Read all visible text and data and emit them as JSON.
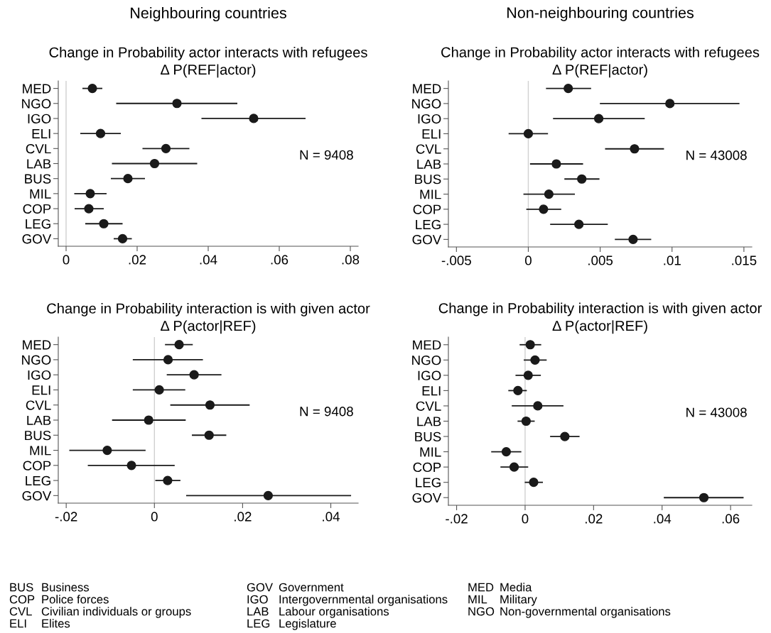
{
  "chart_data": [
    {
      "type": "scatter",
      "orientation": "horizontal",
      "title": "Change in Probability actor interacts with refugees",
      "subtitle": "Δ P(REF|actor)",
      "annotations": [
        "Neighbouring countries",
        "N = 9408"
      ],
      "color": "#1a1a1a",
      "marker": "circle",
      "grid": false,
      "legend": false,
      "categories": [
        "MED",
        "NGO",
        "IGO",
        "ELI",
        "CVL",
        "LAB",
        "BUS",
        "MIL",
        "COP",
        "LEG",
        "GOV"
      ],
      "values": [
        0.0074,
        0.0312,
        0.0528,
        0.0097,
        0.0281,
        0.0249,
        0.0174,
        0.0068,
        0.0064,
        0.0106,
        0.0159
      ],
      "errors": [
        [
          0.0046,
          0.0102
        ],
        [
          0.0141,
          0.0482
        ],
        [
          0.0381,
          0.0674
        ],
        [
          0.004,
          0.0154
        ],
        [
          0.0215,
          0.0347
        ],
        [
          0.0129,
          0.0369
        ],
        [
          0.0126,
          0.0222
        ],
        [
          0.0023,
          0.0114
        ],
        [
          0.0024,
          0.0106
        ],
        [
          0.0054,
          0.0159
        ],
        [
          0.0134,
          0.0185
        ]
      ],
      "xlim": [
        -0.0022,
        0.0822
      ],
      "xticks": [
        0,
        {
          "value": 0.02,
          "label": ".02"
        },
        {
          "value": 0.04,
          "label": ".04"
        },
        {
          "value": 0.06,
          "label": ".06"
        },
        {
          "value": 0.08,
          "label": ".08"
        }
      ],
      "ref_lines": [
        {
          "axis": "x",
          "value": 0,
          "color": "#d0d0d0"
        }
      ]
    },
    {
      "type": "scatter",
      "orientation": "horizontal",
      "title": "Change in Probability actor interacts with refugees",
      "subtitle": "Δ P(REF|actor)",
      "annotations": [
        "Non-neighbouring countries",
        "N = 43008"
      ],
      "color": "#1a1a1a",
      "marker": "circle",
      "grid": false,
      "legend": false,
      "categories": [
        "MED",
        "NGO",
        "IGO",
        "ELI",
        "CVL",
        "LAB",
        "BUS",
        "MIL",
        "COP",
        "LEG",
        "GOV"
      ],
      "values": [
        0.00278,
        0.00985,
        0.0049,
        0.0,
        0.00739,
        0.00195,
        0.00372,
        0.00143,
        0.00106,
        0.00352,
        0.00729
      ],
      "errors": [
        [
          0.00123,
          0.00437
        ],
        [
          0.00498,
          0.01469
        ],
        [
          0.00172,
          0.0081
        ],
        [
          -0.00137,
          0.00137
        ],
        [
          0.00534,
          0.00944
        ],
        [
          0.00012,
          0.00381
        ],
        [
          0.00251,
          0.00495
        ],
        [
          -0.00034,
          0.00324
        ],
        [
          -0.00014,
          0.00229
        ],
        [
          0.00152,
          0.00553
        ],
        [
          0.00602,
          0.00855
        ]
      ],
      "xlim": [
        -0.00556,
        0.01555
      ],
      "xticks": [
        {
          "value": -0.005,
          "label": "-.005"
        },
        0,
        {
          "value": 0.005,
          "label": ".005"
        },
        {
          "value": 0.01,
          "label": ".01"
        },
        {
          "value": 0.015,
          "label": ".015"
        }
      ],
      "ref_lines": [
        {
          "axis": "x",
          "value": 0,
          "color": "#d0d0d0"
        }
      ]
    },
    {
      "type": "scatter",
      "orientation": "horizontal",
      "title": "Change in Probability interaction is with given actor",
      "subtitle": "Δ P(actor|REF)",
      "annotations": [
        "N = 9408"
      ],
      "color": "#1a1a1a",
      "marker": "circle",
      "grid": false,
      "legend": false,
      "categories": [
        "MED",
        "NGO",
        "IGO",
        "ELI",
        "CVL",
        "LAB",
        "BUS",
        "MIL",
        "COP",
        "LEG",
        "GOV"
      ],
      "values": [
        0.0056,
        0.0031,
        0.009,
        0.0011,
        0.0126,
        -0.0013,
        0.0124,
        -0.0107,
        -0.0052,
        0.003,
        0.0258
      ],
      "errors": [
        [
          0.0024,
          0.0087
        ],
        [
          -0.0049,
          0.011
        ],
        [
          0.0028,
          0.0152
        ],
        [
          -0.0049,
          0.007
        ],
        [
          0.0036,
          0.0216
        ],
        [
          -0.0096,
          0.0071
        ],
        [
          0.0085,
          0.0163
        ],
        [
          -0.0193,
          -0.002
        ],
        [
          -0.0151,
          0.0046
        ],
        [
          0.0002,
          0.0059
        ],
        [
          0.0072,
          0.0446
        ]
      ],
      "xlim": [
        -0.0218,
        0.0462
      ],
      "xticks": [
        {
          "value": -0.02,
          "label": "-.02"
        },
        0,
        {
          "value": 0.02,
          "label": ".02"
        },
        {
          "value": 0.04,
          "label": ".04"
        }
      ],
      "ref_lines": [
        {
          "axis": "x",
          "value": 0,
          "color": "#d0d0d0"
        }
      ]
    },
    {
      "type": "scatter",
      "orientation": "horizontal",
      "title": "Change in Probability interaction is with given actor",
      "subtitle": "Δ P(actor|REF)",
      "annotations": [
        "N = 43008"
      ],
      "color": "#1a1a1a",
      "marker": "circle",
      "grid": false,
      "legend": false,
      "categories": [
        "MED",
        "NGO",
        "IGO",
        "ELI",
        "CVL",
        "LAB",
        "BUS",
        "MIL",
        "COP",
        "LEG",
        "GOV"
      ],
      "values": [
        0.0015,
        0.0029,
        0.0009,
        -0.0021,
        0.0037,
        0.0003,
        0.0116,
        -0.0055,
        -0.0032,
        0.0025,
        0.0522
      ],
      "errors": [
        [
          -0.0016,
          0.0047
        ],
        [
          -0.0004,
          0.0063
        ],
        [
          -0.0028,
          0.0046
        ],
        [
          -0.0049,
          0.0005
        ],
        [
          -0.0039,
          0.0112
        ],
        [
          -0.0022,
          0.0028
        ],
        [
          0.0073,
          0.0159
        ],
        [
          -0.0099,
          -0.0011
        ],
        [
          -0.0072,
          0.0009
        ],
        [
          -0.0001,
          0.0052
        ],
        [
          0.0405,
          0.0638
        ]
      ],
      "xlim": [
        -0.0224,
        0.0662
      ],
      "xticks": [
        {
          "value": -0.02,
          "label": "-.02"
        },
        0,
        {
          "value": 0.02,
          "label": ".02"
        },
        {
          "value": 0.04,
          "label": ".04"
        },
        {
          "value": 0.06,
          "label": ".06"
        }
      ],
      "ref_lines": [
        {
          "axis": "x",
          "value": 0,
          "color": "#d0d0d0"
        }
      ]
    },
    {
      "type": "other",
      "annotations": [
        "BUS",
        "Business",
        "COP",
        "Police forces",
        "CVL",
        "Civilian individuals or groups",
        "ELI",
        "Elites",
        "GOV",
        "Government",
        "IGO",
        "Intergovernmental organisations",
        "LAB",
        "Labour organisations",
        "LEG",
        "Legislature",
        "MED",
        "Media",
        "MIL",
        "Military",
        "NGO",
        "Non-governmental organisations"
      ]
    }
  ]
}
